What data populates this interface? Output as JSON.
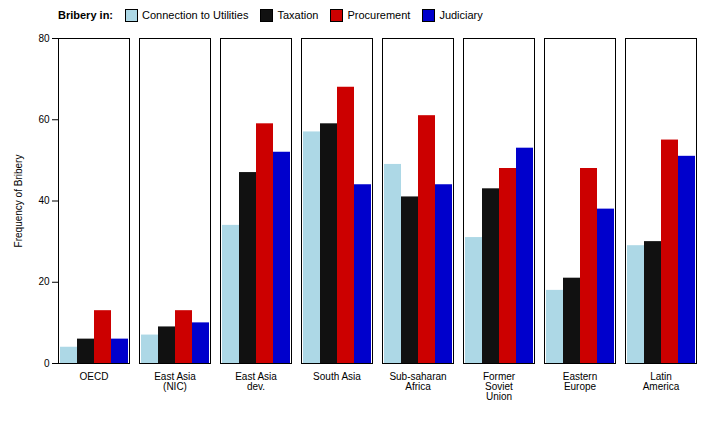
{
  "chart_data": {
    "type": "bar",
    "categories": [
      "OECD",
      "East Asia\n(NIC)",
      "East Asia\ndev.",
      "South Asia",
      "Sub-saharan\nAfrica",
      "Former\nSoviet\nUnion",
      "Eastern\nEurope",
      "Latin\nAmerica"
    ],
    "series": [
      {
        "name": "Connection to Utilities",
        "color": "#add8e6",
        "values": [
          4,
          7,
          34,
          57,
          49,
          31,
          18,
          29
        ]
      },
      {
        "name": "Taxation",
        "color": "#111111",
        "values": [
          6,
          9,
          47,
          59,
          41,
          43,
          21,
          30
        ]
      },
      {
        "name": "Procurement",
        "color": "#cc0000",
        "values": [
          13,
          13,
          59,
          68,
          61,
          48,
          48,
          55
        ]
      },
      {
        "name": "Judiciary",
        "color": "#0000cc",
        "values": [
          6,
          10,
          52,
          44,
          44,
          53,
          38,
          51
        ]
      }
    ],
    "ylabel": "Frequency of Bribery",
    "legend_title": "Bribery in:",
    "ylim": [
      0,
      80
    ],
    "yticks": [
      0,
      20,
      40,
      60,
      80
    ],
    "grid": false,
    "legend": "upper left"
  }
}
